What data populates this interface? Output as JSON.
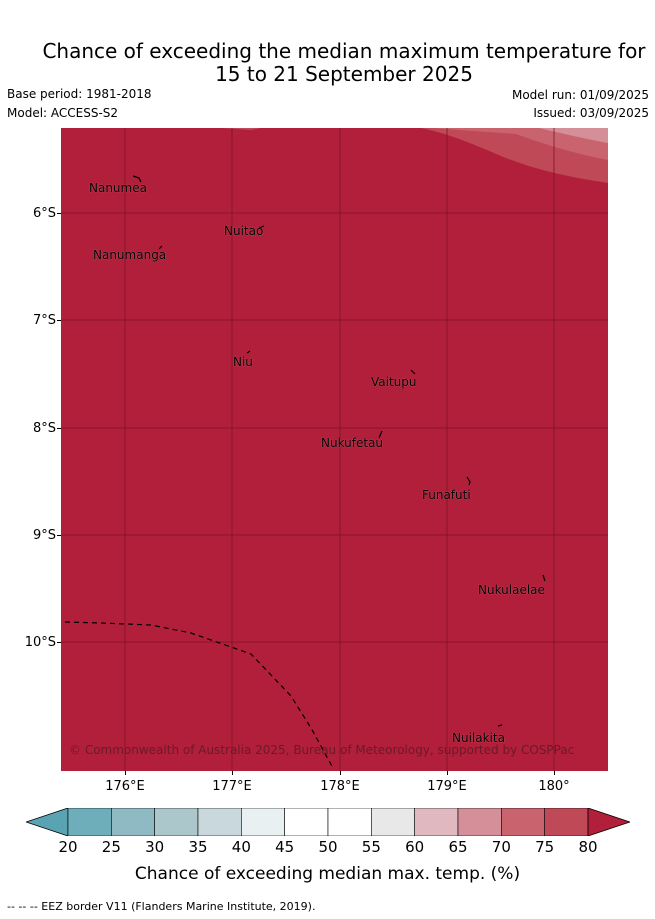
{
  "header": {
    "title_line1": "Chance of exceeding the median maximum temperature for",
    "title_line2": "15 to 21 September 2025",
    "base_period": "Base period: 1981-2018",
    "model": "Model: ACCESS-S2",
    "model_run": "Model run: 01/09/2025",
    "issued": "Issued: 03/09/2025"
  },
  "map": {
    "fill_color": "#b21f3a",
    "lon_range": [
      175.5,
      180.5
    ],
    "lat_range": [
      -11.6,
      -5.6
    ],
    "x_ticks": [
      "176°E",
      "177°E",
      "178°E",
      "179°E",
      "180°"
    ],
    "y_ticks": [
      "6°S",
      "7°S",
      "8°S",
      "9°S",
      "10°S"
    ],
    "islands": [
      "Nanumea",
      "Nuitao",
      "Nanumanga",
      "Niu",
      "Vaitupu",
      "Nukufetau",
      "Funafuti",
      "Nukulaelae",
      "Nuilakita"
    ],
    "copyright": "© Commonwealth of Australia 2025, Bureau of Meteorology, supported by COSPPac"
  },
  "colorbar": {
    "ticks": [
      "20",
      "25",
      "30",
      "35",
      "40",
      "45",
      "50",
      "55",
      "60",
      "65",
      "70",
      "75",
      "80"
    ],
    "colors": [
      "#5aa3b3",
      "#6eaebb",
      "#8fbac4",
      "#abc7cc",
      "#c8d8dc",
      "#e9f0f2",
      "#ffffff",
      "#ffffff",
      "#e8e8e8",
      "#e0b9c0",
      "#d48f99",
      "#c9646f",
      "#c04957",
      "#b21f3a"
    ],
    "title": "Chance of exceeding median max. temp. (%)"
  },
  "legend": {
    "eez_label": "-- -- -- EEZ border V11 (Flanders Marine Institute, 2019)."
  }
}
